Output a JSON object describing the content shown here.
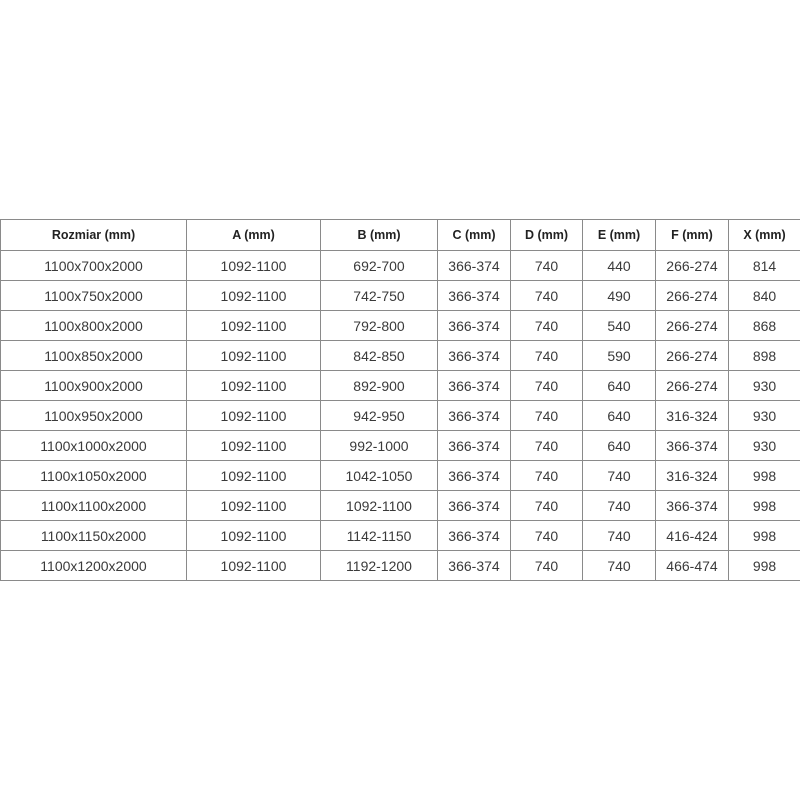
{
  "table": {
    "headers": [
      "Rozmiar (mm)",
      "A (mm)",
      "B (mm)",
      "C (mm)",
      "D (mm)",
      "E (mm)",
      "F (mm)",
      "X (mm)"
    ],
    "rows": [
      [
        "1100x700x2000",
        "1092-1100",
        "692-700",
        "366-374",
        "740",
        "440",
        "266-274",
        "814"
      ],
      [
        "1100x750x2000",
        "1092-1100",
        "742-750",
        "366-374",
        "740",
        "490",
        "266-274",
        "840"
      ],
      [
        "1100x800x2000",
        "1092-1100",
        "792-800",
        "366-374",
        "740",
        "540",
        "266-274",
        "868"
      ],
      [
        "1100x850x2000",
        "1092-1100",
        "842-850",
        "366-374",
        "740",
        "590",
        "266-274",
        "898"
      ],
      [
        "1100x900x2000",
        "1092-1100",
        "892-900",
        "366-374",
        "740",
        "640",
        "266-274",
        "930"
      ],
      [
        "1100x950x2000",
        "1092-1100",
        "942-950",
        "366-374",
        "740",
        "640",
        "316-324",
        "930"
      ],
      [
        "1100x1000x2000",
        "1092-1100",
        "992-1000",
        "366-374",
        "740",
        "640",
        "366-374",
        "930"
      ],
      [
        "1100x1050x2000",
        "1092-1100",
        "1042-1050",
        "366-374",
        "740",
        "740",
        "316-324",
        "998"
      ],
      [
        "1100x1100x2000",
        "1092-1100",
        "1092-1100",
        "366-374",
        "740",
        "740",
        "366-374",
        "998"
      ],
      [
        "1100x1150x2000",
        "1092-1100",
        "1142-1150",
        "366-374",
        "740",
        "740",
        "416-424",
        "998"
      ],
      [
        "1100x1200x2000",
        "1092-1100",
        "1192-1200",
        "366-374",
        "740",
        "740",
        "466-474",
        "998"
      ]
    ]
  }
}
